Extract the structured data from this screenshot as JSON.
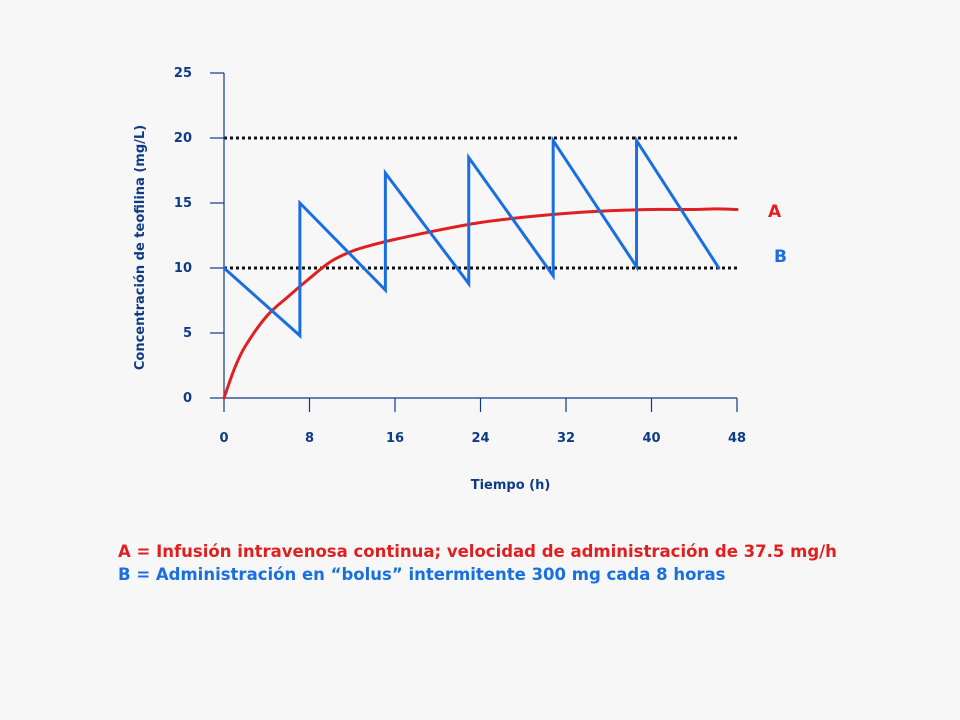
{
  "chart_data": {
    "type": "line",
    "xlabel": "Tiempo (h)",
    "ylabel": "Concentración de teofilina (mg/L)",
    "xlim": [
      0,
      48
    ],
    "ylim": [
      0,
      25
    ],
    "x_ticks": [
      "0",
      "8",
      "16",
      "24",
      "32",
      "40",
      "48"
    ],
    "y_ticks": [
      "0",
      "5",
      "10",
      "15",
      "20",
      "25"
    ],
    "reference_lines": [
      10,
      20
    ],
    "colors": {
      "A": "#e02020",
      "B": "#1a6fe0",
      "axis": "#0d3b86",
      "ref": "#111111"
    },
    "series": [
      {
        "name": "A",
        "x": [
          0,
          1,
          2,
          4,
          6,
          8,
          10,
          12,
          14,
          16,
          20,
          24,
          28,
          32,
          36,
          40,
          44,
          46,
          48
        ],
        "y": [
          0,
          2.3,
          4.0,
          6.3,
          7.8,
          9.2,
          10.5,
          11.3,
          11.8,
          12.2,
          12.9,
          13.5,
          13.9,
          14.2,
          14.4,
          14.5,
          14.5,
          14.55,
          14.5
        ]
      },
      {
        "name": "B",
        "x": [
          0,
          7.1,
          7.1,
          15.1,
          15.1,
          22.9,
          22.9,
          30.8,
          30.8,
          38.6,
          38.6,
          46.3
        ],
        "y": [
          10,
          4.8,
          15.0,
          8.3,
          17.3,
          8.8,
          18.5,
          9.4,
          19.8,
          10.1,
          19.8,
          10.0
        ]
      }
    ]
  },
  "legend": {
    "a": "A = Infusión intravenosa continua; velocidad de administración de 37.5 mg/h",
    "b": "B = Administración en “bolus” intermitente 300 mg cada 8 horas"
  }
}
